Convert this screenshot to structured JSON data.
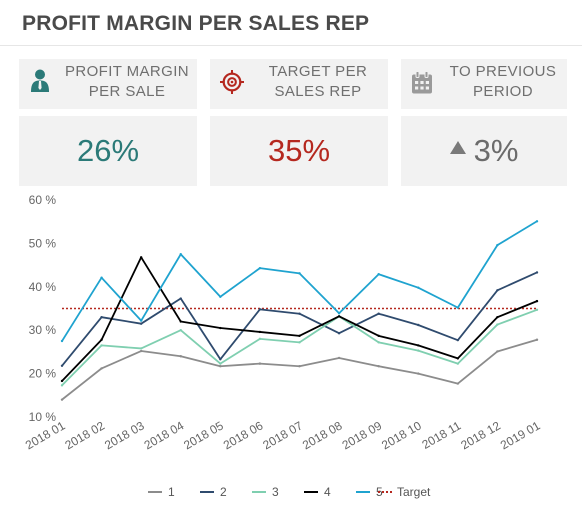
{
  "page": {
    "title": "PROFIT MARGIN PER SALES REP"
  },
  "kpis": [
    {
      "label_line1": "PROFIT MARGIN",
      "label_line2": "PER SALE",
      "value": "26%",
      "icon": "person-icon",
      "color": "#2b7a78"
    },
    {
      "label_line1": "TARGET PER",
      "label_line2": "SALES REP",
      "value": "35%",
      "icon": "target-icon",
      "color": "#b5281f"
    },
    {
      "label_line1": "TO PREVIOUS",
      "label_line2": "PERIOD",
      "value": "3%",
      "icon": "calendar-icon",
      "indicator": "up-arrow-icon",
      "color": "#7a7a7a"
    }
  ],
  "chart_data": {
    "type": "line",
    "categories": [
      "2018 01",
      "2018 02",
      "2018 03",
      "2018 04",
      "2018 05",
      "2018 06",
      "2018 07",
      "2018 08",
      "2018 09",
      "2018 10",
      "2018 11",
      "2018 12",
      "2019 01"
    ],
    "y_ticks": [
      "10 %",
      "20 %",
      "30 %",
      "40 %",
      "50 %",
      "60 %"
    ],
    "ylim": [
      10,
      60
    ],
    "series": [
      {
        "name": "1",
        "color": "#8c8c8c",
        "values": [
          14,
          21.2,
          25.2,
          24,
          21.7,
          22.3,
          21.7,
          23.6,
          21.7,
          20,
          17.7,
          25.1,
          27.8
        ]
      },
      {
        "name": "2",
        "color": "#2f4b6e",
        "values": [
          21.8,
          33,
          31.5,
          37.3,
          23.3,
          34.8,
          33.8,
          29.3,
          33.8,
          31.2,
          27.7,
          39.2,
          43.3
        ]
      },
      {
        "name": "3",
        "color": "#7fcfb0",
        "values": [
          17.3,
          26.5,
          25.8,
          30,
          22.3,
          28,
          27.2,
          33.2,
          27.2,
          25.3,
          22.3,
          31.3,
          34.7
        ]
      },
      {
        "name": "4",
        "color": "#000000",
        "values": [
          18.3,
          27.8,
          46.8,
          32,
          30.5,
          29.6,
          28.7,
          33.2,
          28.7,
          26.5,
          23.5,
          33,
          36.7
        ]
      },
      {
        "name": "5",
        "color": "#1fa3cf",
        "values": [
          27.5,
          42.1,
          32.2,
          47.5,
          37.7,
          44.3,
          43.1,
          33.9,
          42.9,
          39.8,
          35.2,
          49.6,
          55.1
        ]
      }
    ],
    "target": {
      "name": "Target",
      "value": 35,
      "color": "#b5281f"
    },
    "legend_position": "bottom",
    "grid": false
  }
}
